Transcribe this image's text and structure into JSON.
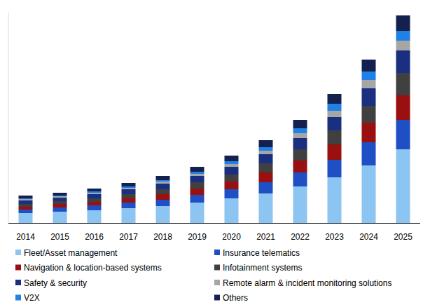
{
  "chart_data": {
    "type": "bar",
    "stacked": true,
    "grid": false,
    "tick_labels": "x",
    "legend": "bottom",
    "categories": [
      "2014",
      "2015",
      "2016",
      "2017",
      "2018",
      "2019",
      "2020",
      "2021",
      "2022",
      "2023",
      "2024",
      "2025"
    ],
    "ylim": [
      0,
      300
    ],
    "series": [
      {
        "name": "Fleet/Asset management",
        "color": "#8cc4f2",
        "values": [
          14,
          16,
          18,
          21,
          24,
          29,
          35,
          42,
          52,
          65,
          82,
          105
        ]
      },
      {
        "name": "Insurance telematics",
        "color": "#1f4fc4",
        "values": [
          5,
          6,
          7,
          8,
          9,
          11,
          13,
          16,
          20,
          25,
          33,
          42
        ]
      },
      {
        "name": "Navigation & location-based systems",
        "color": "#9a0f0f",
        "values": [
          4,
          5,
          5,
          6,
          8,
          9,
          11,
          14,
          17,
          22,
          28,
          35
        ]
      },
      {
        "name": "Infotainment systems",
        "color": "#404040",
        "values": [
          4,
          4,
          5,
          6,
          7,
          9,
          10,
          13,
          16,
          20,
          24,
          32
        ]
      },
      {
        "name": "Safety & security",
        "color": "#1a2f80",
        "values": [
          5,
          5,
          6,
          7,
          8,
          9,
          11,
          13,
          16,
          19,
          25,
          32
        ]
      },
      {
        "name": "Remote alarm & incident monitoring solutions",
        "color": "#a6a6a6",
        "values": [
          2,
          2,
          2,
          2,
          3,
          3,
          4,
          5,
          7,
          9,
          12,
          14
        ]
      },
      {
        "name": "V2X",
        "color": "#1f80e6",
        "values": [
          1,
          1,
          2,
          2,
          2,
          3,
          4,
          5,
          7,
          10,
          12,
          14
        ]
      },
      {
        "name": "Others",
        "color": "#14214f",
        "values": [
          4,
          4,
          4,
          5,
          6,
          7,
          8,
          10,
          12,
          14,
          17,
          22
        ]
      }
    ]
  }
}
